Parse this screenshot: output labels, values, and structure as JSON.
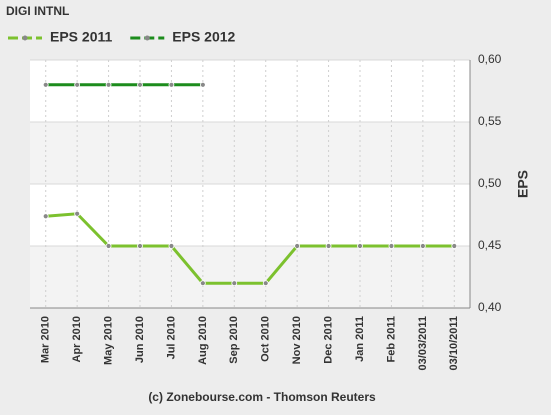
{
  "chart_data": {
    "type": "line",
    "title": "DIGI INTNL",
    "ylabel": "EPS",
    "footer": "(c) Zonebourse.com - Thomson Reuters",
    "categories": [
      "Mar 2010",
      "Apr 2010",
      "May 2010",
      "Jun 2010",
      "Jul 2010",
      "Aug 2010",
      "Sep 2010",
      "Oct 2010",
      "Nov 2010",
      "Dec 2010",
      "Jan 2011",
      "Feb 2011",
      "03/03/2011",
      "03/10/2011"
    ],
    "series": [
      {
        "name": "EPS 2011",
        "color": "#7cc12e",
        "values": [
          0.474,
          0.476,
          0.45,
          0.45,
          0.45,
          0.42,
          0.42,
          0.42,
          0.45,
          0.45,
          0.45,
          0.45,
          0.45,
          0.45
        ]
      },
      {
        "name": "EPS 2012",
        "color": "#1c8c1c",
        "values": [
          0.58,
          0.58,
          0.58,
          0.58,
          0.58,
          0.58,
          null,
          null,
          null,
          null,
          null,
          null,
          null,
          null
        ]
      }
    ],
    "ylim": [
      0.4,
      0.6
    ],
    "yticks": [
      {
        "value": 0.4,
        "label": "0,40"
      },
      {
        "value": 0.45,
        "label": "0,45"
      },
      {
        "value": 0.5,
        "label": "0,50"
      },
      {
        "value": 0.55,
        "label": "0,55"
      },
      {
        "value": 0.6,
        "label": "0,60"
      }
    ],
    "grid": true
  }
}
